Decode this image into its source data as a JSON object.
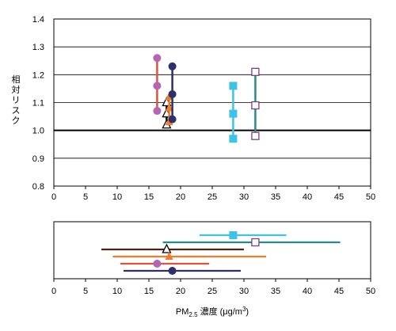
{
  "chart_data": [
    {
      "type": "scatter",
      "title": "",
      "ylabel": "相対リスク",
      "xlabel": "",
      "xlim": [
        0,
        50
      ],
      "ylim": [
        0.8,
        1.4
      ],
      "x_ticks": [
        "0",
        "5",
        "10",
        "15",
        "20",
        "25",
        "30",
        "35",
        "40",
        "45",
        "50"
      ],
      "y_ticks": [
        "0.8",
        "0.9",
        "1.0",
        "1.1",
        "1.2",
        "1.3",
        "1.4"
      ],
      "reference_y": 1.0,
      "grid": "horizontal",
      "series": [
        {
          "x": 16.3,
          "y": 1.16,
          "low": 1.07,
          "high": 1.26,
          "marker": "circle",
          "color": "#b565b5",
          "line_color": "#e0523a"
        },
        {
          "x": 17.8,
          "y": 1.06,
          "low": 1.02,
          "high": 1.1,
          "marker": "triangle-open",
          "color": "#000000",
          "line_color": "#000000"
        },
        {
          "x": 18.2,
          "y": 1.08,
          "low": 1.03,
          "high": 1.12,
          "marker": "triangle",
          "color": "#f07c2c",
          "line_color": "#f07c2c"
        },
        {
          "x": 18.7,
          "y": 1.13,
          "low": 1.04,
          "high": 1.23,
          "marker": "circle",
          "color": "#2e3165",
          "line_color": "#2e3165"
        },
        {
          "x": 28.3,
          "y": 1.06,
          "low": 0.97,
          "high": 1.16,
          "marker": "square",
          "color": "#3dc3e8",
          "line_color": "#3dc3e8"
        },
        {
          "x": 31.8,
          "y": 1.09,
          "low": 0.98,
          "high": 1.21,
          "marker": "square-open",
          "color": "#7b3f87",
          "line_color": "#2a8a88"
        }
      ]
    },
    {
      "type": "scatter",
      "title": "",
      "xlabel": "PM2.5 濃度 (μg/m3)",
      "xlabel_parts": {
        "main": "PM",
        "sub": "2.5",
        "rest": " 濃度 (μg/m",
        "sup": "3",
        "end": ")"
      },
      "xlim": [
        0,
        50
      ],
      "x_ticks": [
        "0",
        "5",
        "10",
        "15",
        "20",
        "25",
        "30",
        "35",
        "40",
        "45",
        "50"
      ],
      "series": [
        {
          "mean": 28.3,
          "low": 23.0,
          "high": 36.7,
          "marker": "square",
          "color": "#3dc3e8",
          "line_color": "#3dc3e8"
        },
        {
          "mean": 31.8,
          "low": 17.2,
          "high": 45.2,
          "marker": "square-open",
          "color": "#7b3f87",
          "line_color": "#2a8a88"
        },
        {
          "mean": 17.8,
          "low": 7.5,
          "high": 30.0,
          "marker": "triangle-open",
          "color": "#000000",
          "line_color": "#4a2515"
        },
        {
          "mean": 18.2,
          "low": 9.3,
          "high": 33.5,
          "marker": "triangle",
          "color": "#f07c2c",
          "line_color": "#f07c2c"
        },
        {
          "mean": 16.3,
          "low": 10.5,
          "high": 24.5,
          "marker": "circle",
          "color": "#b565b5",
          "line_color": "#e0523a"
        },
        {
          "mean": 18.7,
          "low": 11.0,
          "high": 29.5,
          "marker": "circle",
          "color": "#2e3165",
          "line_color": "#2e3165"
        }
      ]
    }
  ]
}
